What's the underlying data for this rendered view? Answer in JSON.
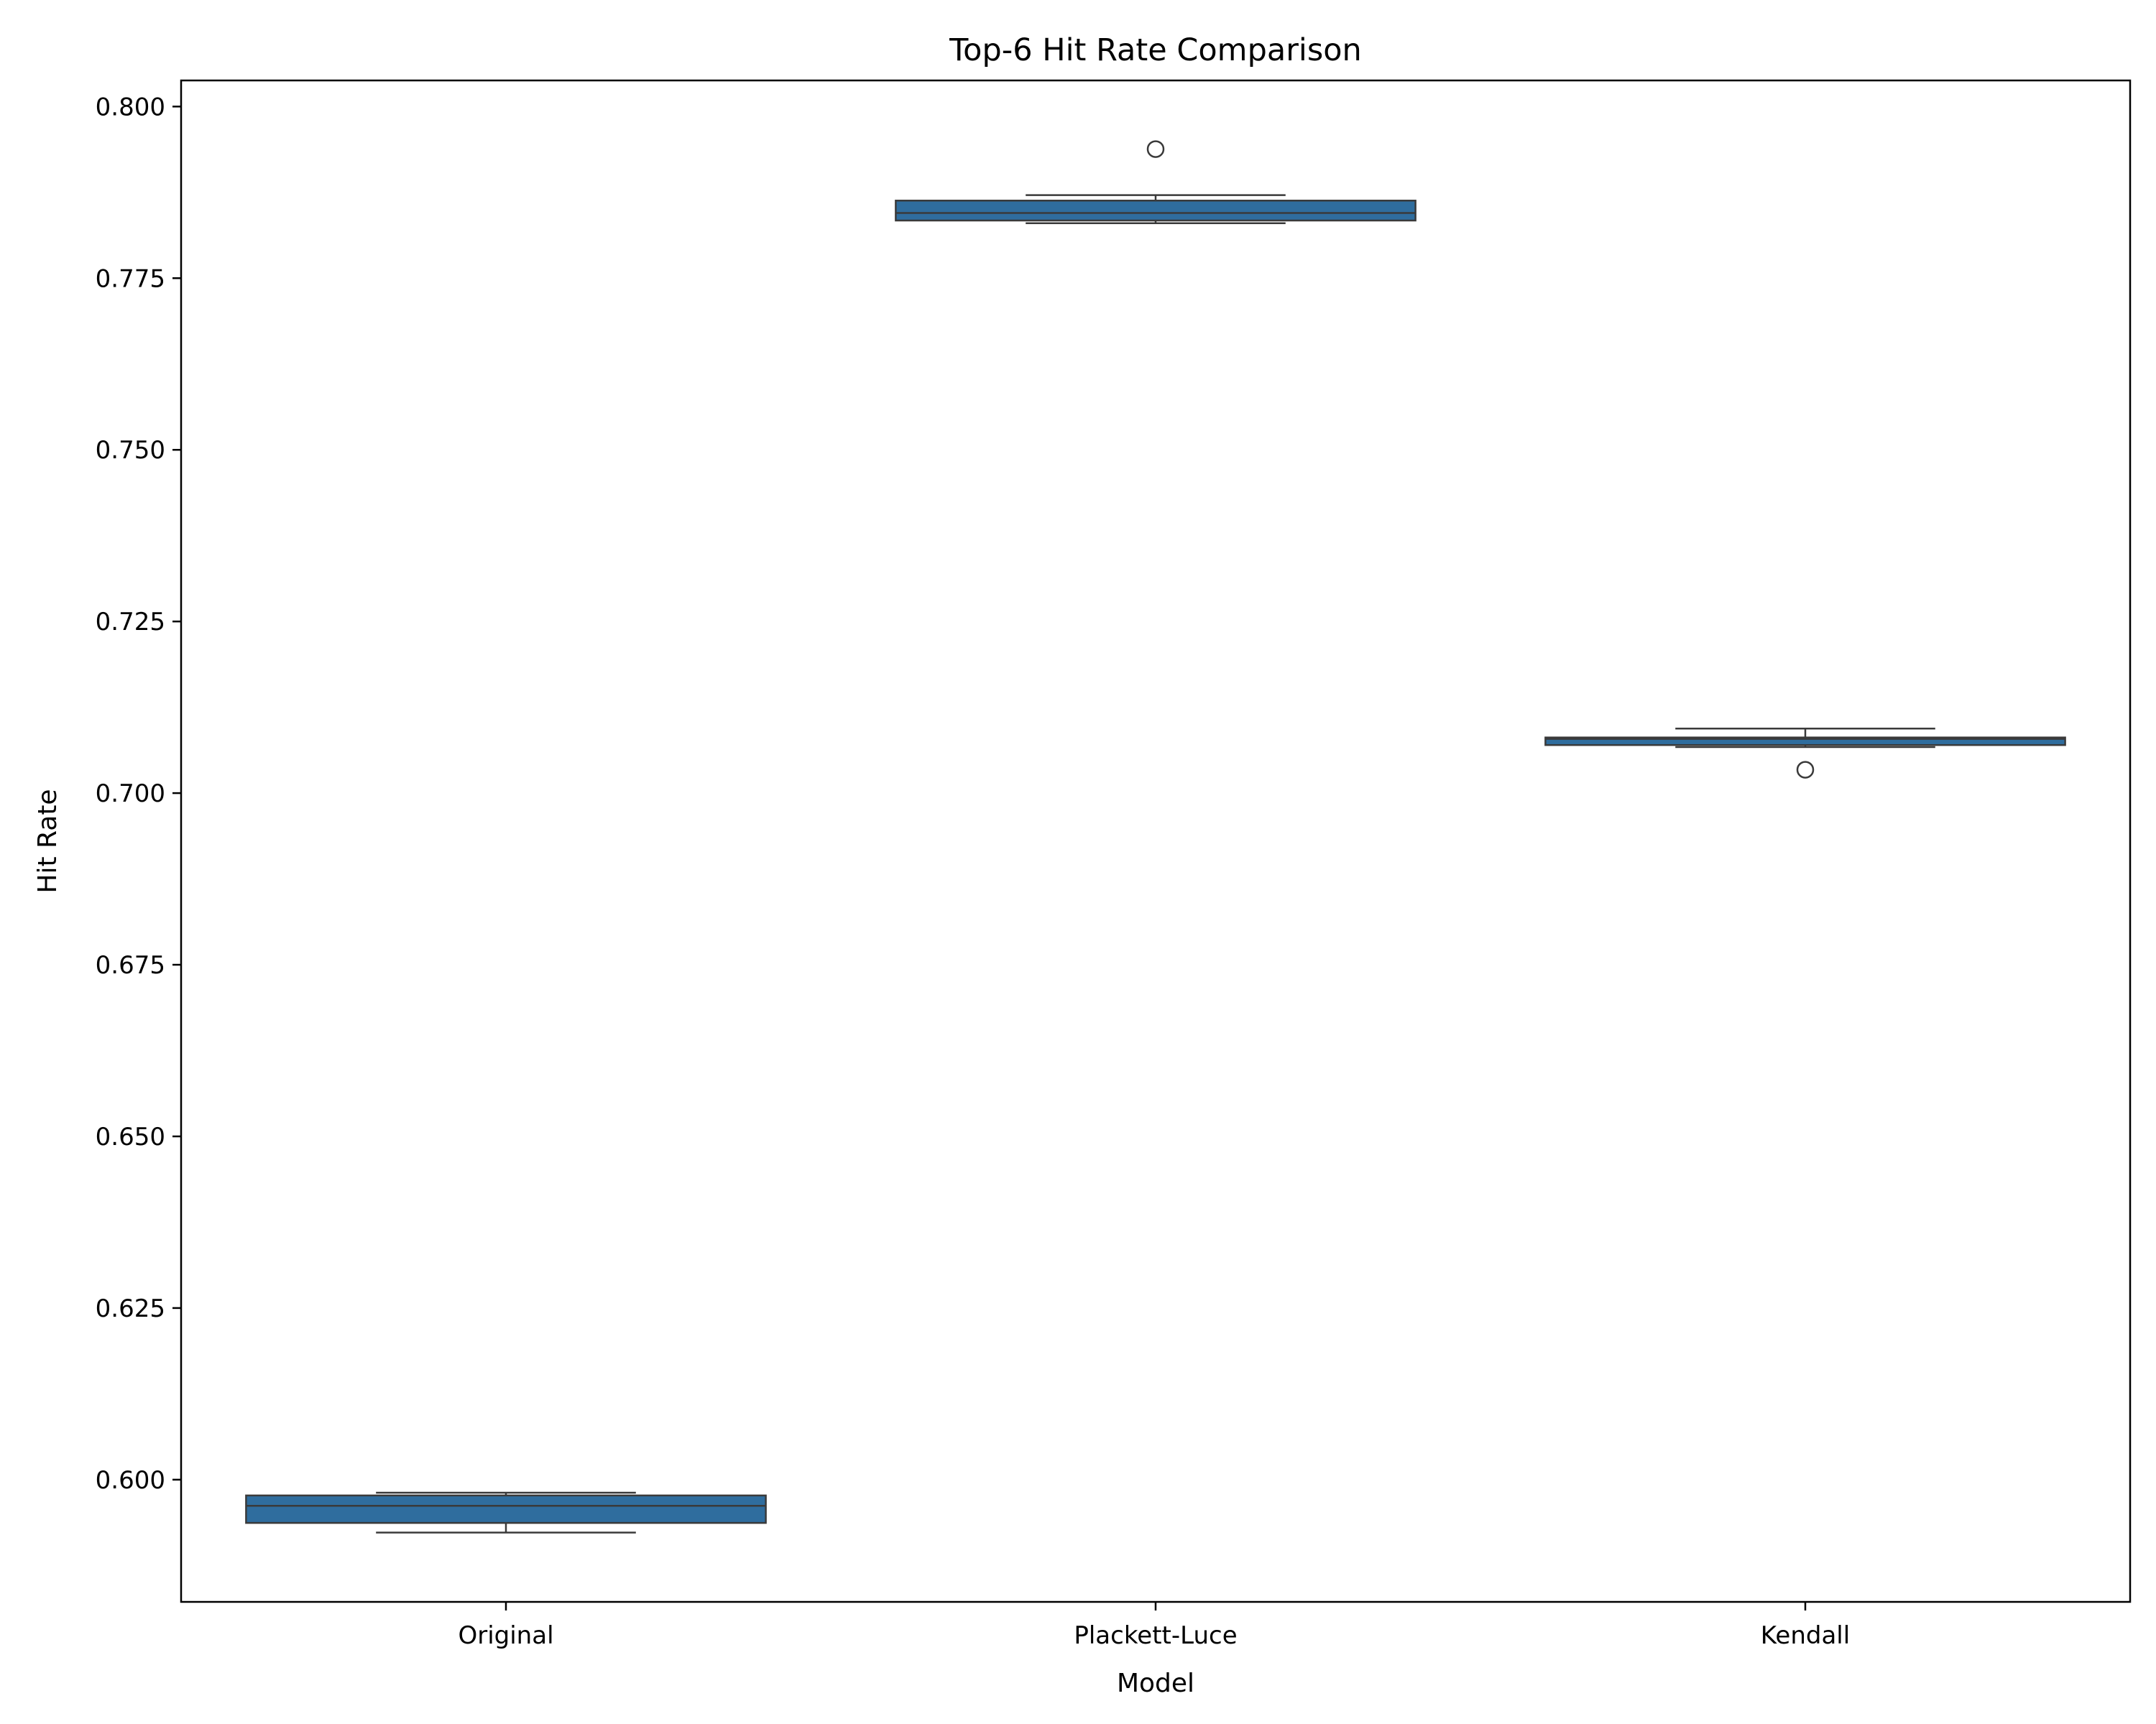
{
  "chart_data": {
    "type": "box",
    "title": "Top-6 Hit Rate Comparison",
    "xlabel": "Model",
    "ylabel": "Hit Rate",
    "ylim": [
      0.5822,
      0.8038
    ],
    "yticks": [
      0.6,
      0.625,
      0.65,
      0.675,
      0.7,
      0.725,
      0.75,
      0.775,
      0.8
    ],
    "ytick_labels": [
      "0.600",
      "0.625",
      "0.650",
      "0.675",
      "0.700",
      "0.725",
      "0.750",
      "0.775",
      "0.800"
    ],
    "grid": false,
    "box_color": "#2f6d9e",
    "edge_color": "#3a3a3a",
    "categories": [
      "Original",
      "Plackett-Luce",
      "Kendall"
    ],
    "boxes": [
      {
        "category": "Original",
        "whisker_low": 0.5923,
        "q1": 0.5937,
        "median": 0.5962,
        "q3": 0.5977,
        "whisker_high": 0.5981,
        "outliers": []
      },
      {
        "category": "Plackett-Luce",
        "whisker_low": 0.783,
        "q1": 0.7834,
        "median": 0.7845,
        "q3": 0.7863,
        "whisker_high": 0.7871,
        "outliers": [
          0.7938
        ]
      },
      {
        "category": "Kendall",
        "whisker_low": 0.7067,
        "q1": 0.707,
        "median": 0.7079,
        "q3": 0.7081,
        "whisker_high": 0.7094,
        "outliers": [
          0.7034
        ]
      }
    ]
  }
}
